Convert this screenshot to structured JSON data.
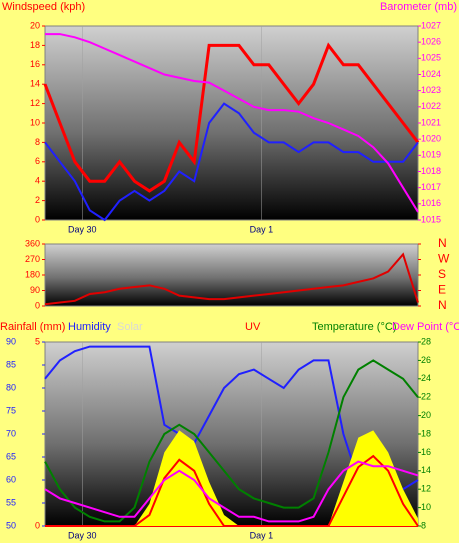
{
  "chart_data": [
    {
      "type": "line",
      "y_label": "Windspeed (kph)",
      "y2_label": "Barometer (mb)",
      "ycolor": "#ff0000",
      "y2color": "#ff00ff",
      "x": [
        -5,
        -3,
        -1,
        1,
        3,
        5,
        7,
        9,
        11,
        13,
        15,
        17,
        19,
        21,
        23,
        25,
        27,
        29,
        31,
        33,
        35,
        37,
        39,
        41,
        43,
        45
      ],
      "xlim": [
        -5,
        45
      ],
      "xticks": [
        {
          "value": 0,
          "label": "Day 30"
        },
        {
          "value": 24,
          "label": "Day 1"
        }
      ],
      "ylim": [
        0,
        20
      ],
      "yticks": [
        0,
        2,
        4,
        6,
        8,
        10,
        12,
        14,
        16,
        18,
        20
      ],
      "y2lim": [
        1015,
        1027
      ],
      "y2ticks": [
        1015,
        1016,
        1017,
        1018,
        1019,
        1020,
        1021,
        1022,
        1023,
        1024,
        1025,
        1026,
        1027
      ],
      "series": [
        {
          "color": "#ff0000",
          "width": 3,
          "values": [
            14,
            10,
            6,
            4,
            4,
            6,
            4,
            3,
            4,
            8,
            6,
            18,
            18,
            18,
            16,
            16,
            14,
            12,
            14,
            18,
            16,
            16,
            14,
            12,
            10,
            8
          ]
        },
        {
          "color": "#2020ff",
          "width": 2,
          "values": [
            8,
            6,
            4,
            1,
            0,
            2,
            3,
            2,
            3,
            5,
            4,
            10,
            12,
            11,
            9,
            8,
            8,
            7,
            8,
            8,
            7,
            7,
            6,
            6,
            6,
            8
          ]
        },
        {
          "color": "#ff00ff",
          "width": 2,
          "axis": "y2",
          "values": [
            1026.5,
            1026.5,
            1026.3,
            1026,
            1025.6,
            1025.2,
            1024.8,
            1024.4,
            1024,
            1023.8,
            1023.6,
            1023.5,
            1023,
            1022.5,
            1022,
            1021.8,
            1021.8,
            1021.7,
            1021.3,
            1021,
            1020.6,
            1020.2,
            1019.5,
            1018.5,
            1017,
            1015.5
          ]
        }
      ]
    },
    {
      "type": "line",
      "ycolor": "#ff0000",
      "y2color": "#ff0000",
      "x": [
        -5,
        -3,
        -1,
        1,
        3,
        5,
        7,
        9,
        11,
        13,
        15,
        17,
        19,
        21,
        23,
        25,
        27,
        29,
        31,
        33,
        35,
        37,
        39,
        41,
        43,
        45
      ],
      "xlim": [
        -5,
        45
      ],
      "ylim": [
        0,
        360
      ],
      "yticks": [
        0,
        90,
        180,
        270,
        360
      ],
      "y2lim": [
        0,
        360
      ],
      "y2ticks": [
        {
          "value": 360,
          "label": "N"
        },
        {
          "value": 270,
          "label": "W"
        },
        {
          "value": 180,
          "label": "S"
        },
        {
          "value": 90,
          "label": "E"
        },
        {
          "value": 0,
          "label": "N"
        }
      ],
      "series": [
        {
          "color": "#e00000",
          "width": 2,
          "values": [
            10,
            20,
            30,
            70,
            80,
            100,
            110,
            120,
            100,
            60,
            50,
            40,
            40,
            50,
            60,
            70,
            80,
            90,
            100,
            110,
            120,
            140,
            160,
            200,
            300,
            20
          ]
        }
      ]
    },
    {
      "type": "line",
      "ycolor": "#ff0000",
      "y2color": "#008000",
      "y3color": "#2020ff",
      "x": [
        -5,
        -3,
        -1,
        1,
        3,
        5,
        7,
        9,
        11,
        13,
        15,
        17,
        19,
        21,
        23,
        25,
        27,
        29,
        31,
        33,
        35,
        37,
        39,
        41,
        43,
        45
      ],
      "xlim": [
        -5,
        45
      ],
      "xticks": [
        {
          "value": 0,
          "label": "Day 30"
        },
        {
          "value": 24,
          "label": "Day 1"
        }
      ],
      "ylim": [
        0,
        5
      ],
      "yticks": [
        0,
        5
      ],
      "y2lim": [
        8,
        28
      ],
      "y2ticks": [
        8,
        10,
        12,
        14,
        16,
        18,
        20,
        22,
        24,
        26,
        28
      ],
      "y3lim": [
        50,
        90
      ],
      "y3ticks": [
        50,
        55,
        60,
        65,
        70,
        75,
        80,
        85,
        90
      ],
      "series": [
        {
          "name": "Rainfall (mm)",
          "color": "#ff0000",
          "width": 2,
          "values": [
            0,
            0,
            0,
            0,
            0,
            0,
            0,
            0,
            0,
            0,
            0,
            0,
            0,
            0,
            0,
            0,
            0,
            0,
            0,
            0,
            0,
            0,
            0,
            0,
            0,
            0
          ]
        },
        {
          "name": "Humidity",
          "color": "#2020ff",
          "width": 2,
          "axis": "y3",
          "values": [
            82,
            86,
            88,
            89,
            89,
            89,
            89,
            89,
            72,
            70,
            68,
            74,
            80,
            83,
            84,
            82,
            80,
            84,
            86,
            86,
            70,
            60,
            56,
            55,
            58,
            60
          ]
        },
        {
          "name": "Solar",
          "color": "#ffff00",
          "label_color": "#d8d8d8",
          "area": true,
          "values": [
            0,
            0,
            0,
            0,
            0,
            0,
            0,
            0.6,
            2,
            2.6,
            2.3,
            1.2,
            0.3,
            0,
            0,
            0,
            0,
            0,
            0,
            0,
            1.2,
            2.4,
            2.6,
            2,
            1,
            0.2
          ]
        },
        {
          "name": "UV",
          "color": "#ff0000",
          "width": 2,
          "values": [
            0,
            0,
            0,
            0,
            0,
            0,
            0,
            0.3,
            1.3,
            1.8,
            1.5,
            0.6,
            0,
            0,
            0,
            0,
            0,
            0,
            0,
            0,
            0.8,
            1.6,
            1.9,
            1.5,
            0.6,
            0
          ]
        },
        {
          "name": "Temperature (°C)",
          "color": "#008000",
          "width": 2,
          "axis": "y2",
          "values": [
            15,
            12,
            10,
            9,
            8.5,
            8.5,
            10,
            15,
            18,
            19,
            18,
            16,
            14,
            12,
            11,
            10.5,
            10,
            10,
            11,
            16,
            22,
            25,
            26,
            25,
            24,
            22
          ]
        },
        {
          "name": "Dew Point (°C)",
          "color": "#ff00ff",
          "width": 2,
          "axis": "y2",
          "values": [
            12,
            11,
            10.5,
            10,
            9.5,
            9,
            9,
            11,
            13,
            14,
            13,
            11,
            10,
            9,
            9,
            8.5,
            8.5,
            8.5,
            9,
            12,
            14,
            15,
            14.5,
            14.5,
            14,
            13.5
          ]
        }
      ]
    }
  ]
}
